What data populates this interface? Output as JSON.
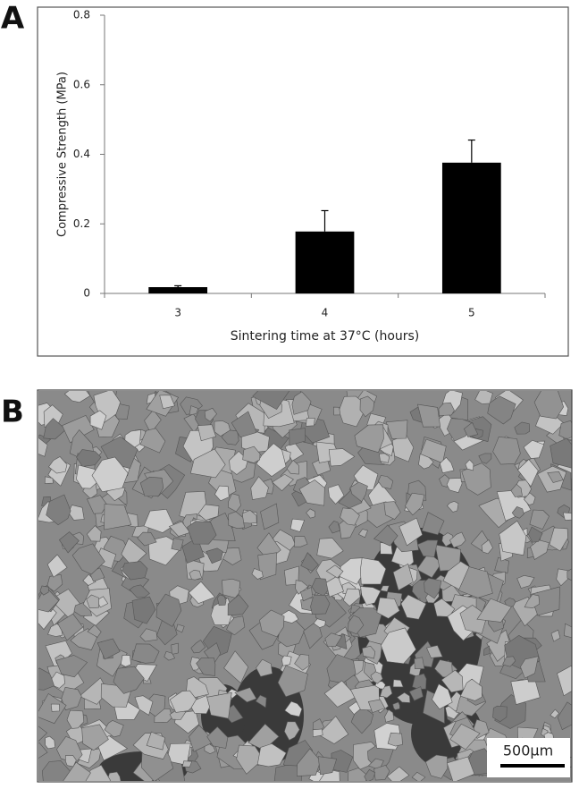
{
  "panels": {
    "a_label": "A",
    "b_label": "B",
    "scale_bar": "500µm"
  },
  "chart_data": {
    "type": "bar",
    "x_label": "Sintering time at 37°C (hours)",
    "y_label": "Compressive Strength (MPa)",
    "categories": [
      "3",
      "4",
      "5"
    ],
    "values": [
      0.018,
      0.178,
      0.376
    ],
    "errors": [
      0.004,
      0.06,
      0.065
    ],
    "color": "#000000",
    "ylim": [
      0,
      0.8
    ],
    "yticks": [
      0,
      0.2,
      0.4,
      0.6,
      0.8
    ],
    "grid": false
  }
}
